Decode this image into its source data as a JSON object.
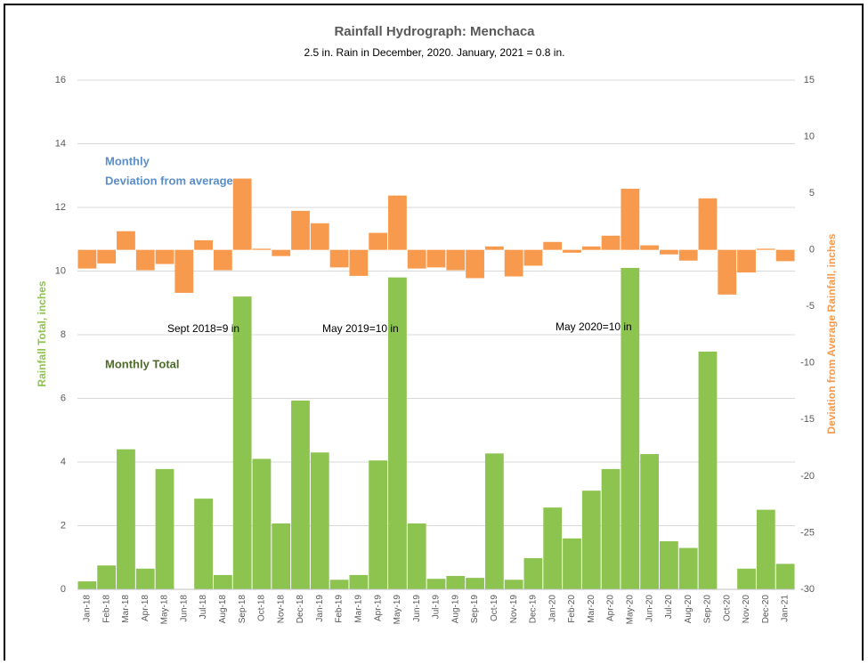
{
  "chart_data": {
    "type": "bar",
    "title": "Rainfall Hydrograph: Menchaca",
    "subtitle": "2.5 in. Rain in December, 2020. January, 2021 = 0.8 in.",
    "y_label": "Rainfall Total, inches",
    "y2_label": "Deviation from Average Rainfall, inches",
    "annotations": [
      "Monthly",
      "Deviation from average",
      "Monthly Total",
      "Sept 2018=9 in",
      "May 2019=10 in",
      "May 2020=10 in"
    ],
    "categories": [
      "Jan-18",
      "Feb-18",
      "Mar-18",
      "Apr-18",
      "May-18",
      "Jun-18",
      "Jul-18",
      "Aug-18",
      "Sep-18",
      "Oct-18",
      "Nov-18",
      "Dec-18",
      "Jan-19",
      "Feb-19",
      "Mar-19",
      "Apr-19",
      "May-19",
      "Jun-19",
      "Jul-19",
      "Aug-19",
      "Sep-19",
      "Oct-19",
      "Nov-19",
      "Dec-19",
      "Jan-20",
      "Feb-20",
      "Mar-20",
      "Apr-20",
      "May-20",
      "Jun-20",
      "Jul-20",
      "Aug-20",
      "Sep-20",
      "Oct-20",
      "Nov-20",
      "Dec-20",
      "Jan-21"
    ],
    "series": [
      {
        "name": "Monthly Total",
        "color": "#8dc34f",
        "values": [
          0.25,
          0.75,
          4.4,
          0.65,
          3.78,
          0,
          2.85,
          0.45,
          9.2,
          4.1,
          2.07,
          5.93,
          4.3,
          0.3,
          0.45,
          4.05,
          9.8,
          2.07,
          0.33,
          0.42,
          0.36,
          4.27,
          0.3,
          0.98,
          2.57,
          1.6,
          3.1,
          3.78,
          10.1,
          4.25,
          1.51,
          1.3,
          7.47,
          0,
          0.65,
          2.5,
          0.8
        ]
      },
      {
        "name": "Deviation from average",
        "color": "#f79a4d",
        "axis": "y2",
        "values": [
          -1.65,
          -1.2,
          1.65,
          -1.8,
          -1.25,
          -3.8,
          0.85,
          -1.8,
          6.3,
          0.1,
          -0.55,
          3.45,
          2.35,
          -1.55,
          -2.3,
          1.5,
          4.8,
          -1.65,
          -1.55,
          -1.8,
          -2.5,
          0.3,
          -2.35,
          -1.4,
          0.7,
          -0.25,
          0.3,
          1.25,
          5.4,
          0.4,
          -0.4,
          -0.95,
          4.55,
          -3.95,
          -2.0,
          0.1,
          -1.0
        ]
      }
    ],
    "ylim": [
      0,
      16
    ],
    "yticks": [
      0,
      2,
      4,
      6,
      8,
      10,
      12,
      14,
      16
    ],
    "y2lim": [
      -30,
      15
    ],
    "y2ticks": [
      -30,
      -25,
      -20,
      -15,
      -10,
      -5,
      0,
      5,
      10,
      15
    ],
    "grid": true
  }
}
